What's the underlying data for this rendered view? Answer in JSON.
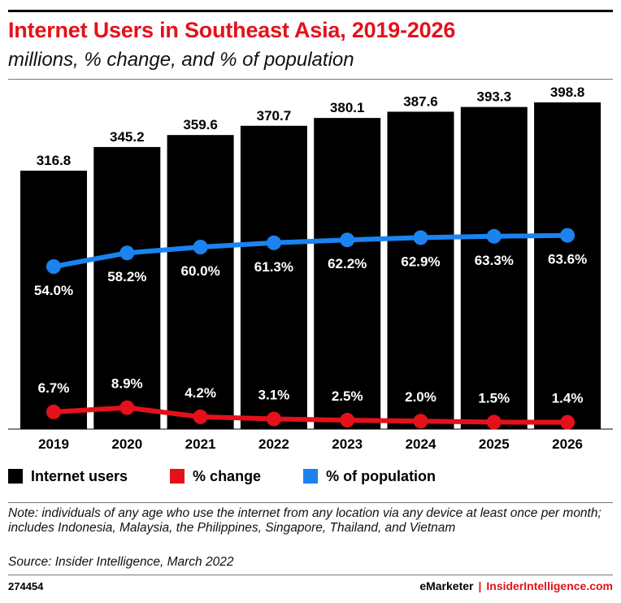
{
  "header": {
    "title": "Internet Users in Southeast Asia, 2019-2026",
    "subtitle": "millions, % change, and % of population"
  },
  "legend": [
    {
      "label": "Internet users",
      "color": "#000000"
    },
    {
      "label": "% change",
      "color": "#e4111b"
    },
    {
      "label": "% of population",
      "color": "#1a83f0"
    }
  ],
  "chart_data": {
    "type": "bar",
    "categories": [
      "2019",
      "2020",
      "2021",
      "2022",
      "2023",
      "2024",
      "2025",
      "2026"
    ],
    "series": [
      {
        "name": "Internet users",
        "type": "bar",
        "color": "#000000",
        "values": [
          316.8,
          345.2,
          359.6,
          370.7,
          380.1,
          387.6,
          393.3,
          398.8
        ],
        "labels": [
          "316.8",
          "345.2",
          "359.6",
          "370.7",
          "380.1",
          "387.6",
          "393.3",
          "398.8"
        ]
      },
      {
        "name": "% change",
        "type": "line",
        "color": "#e4111b",
        "values": [
          6.7,
          8.9,
          4.2,
          3.1,
          2.5,
          2.0,
          1.5,
          1.4
        ],
        "labels": [
          "6.7%",
          "8.9%",
          "4.2%",
          "3.1%",
          "2.5%",
          "2.0%",
          "1.5%",
          "1.4%"
        ]
      },
      {
        "name": "% of population",
        "type": "line",
        "color": "#1a83f0",
        "values": [
          54.0,
          58.2,
          60.0,
          61.3,
          62.2,
          62.9,
          63.3,
          63.6
        ],
        "labels": [
          "54.0%",
          "58.2%",
          "60.0%",
          "61.3%",
          "62.2%",
          "62.9%",
          "63.3%",
          "63.6%"
        ]
      }
    ]
  },
  "footer": {
    "note": "Note: individuals of any age who use the internet from any location via any device at least once per month; includes Indonesia, Malaysia, the Philippines, Singapore, Thailand, and Vietnam",
    "source": "Source: Insider Intelligence, March 2022",
    "chart_id": "274454",
    "brand_emarketer": "eMarketer",
    "brand_separator": "|",
    "brand_insider": "InsiderIntelligence.com"
  }
}
